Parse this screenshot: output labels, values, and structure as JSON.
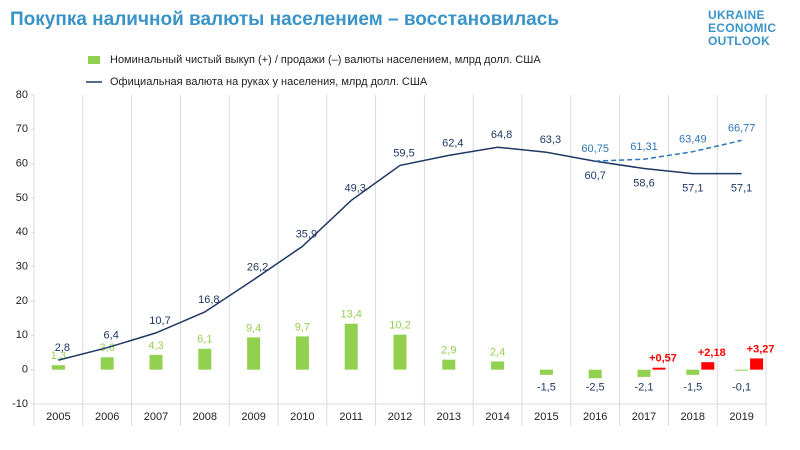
{
  "chart_data": {
    "type": "combo",
    "title": "Покупка наличной валюты населением – восстановилась",
    "logo": [
      "UKRAINE",
      "ECONOMIC",
      "OUTLOOK"
    ],
    "categories": [
      "2005",
      "2006",
      "2007",
      "2008",
      "2009",
      "2010",
      "2011",
      "2012",
      "2013",
      "2014",
      "2015",
      "2016",
      "2017",
      "2018",
      "2019"
    ],
    "ylim": [
      -10,
      80
    ],
    "yticks": [
      -10,
      0,
      10,
      20,
      30,
      40,
      50,
      60,
      70,
      80
    ],
    "legend": "top-left",
    "series": [
      {
        "name": "Номинальный чистый выкуп (+) / продажи (–) валюты населением, млрд долл. США",
        "type": "bar",
        "color": "#92d050",
        "values": [
          1.3,
          3.6,
          4.3,
          6.1,
          9.4,
          9.7,
          13.4,
          10.2,
          2.9,
          2.4,
          -1.5,
          -2.5,
          -2.1,
          -1.5,
          -0.1
        ],
        "value_labels": [
          "1,3",
          "3,6",
          "4,3",
          "6,1",
          "9,4",
          "9,7",
          "13,4",
          "10,2",
          "2,9",
          "2,4",
          "-1,5",
          "-2,5",
          "-2,1",
          "-1,5",
          "-0,1"
        ]
      },
      {
        "type": "bar",
        "color": "#ff0000",
        "values": [
          null,
          null,
          null,
          null,
          null,
          null,
          null,
          null,
          null,
          null,
          null,
          null,
          0.57,
          2.18,
          3.27
        ],
        "value_labels": [
          null,
          null,
          null,
          null,
          null,
          null,
          null,
          null,
          null,
          null,
          null,
          null,
          "+0,57",
          "+2,18",
          "+3,27"
        ]
      },
      {
        "name": "Официальная валюта на руках у населения, млрд долл. США",
        "type": "line",
        "color": "#1f3864",
        "values": [
          2.8,
          6.4,
          10.7,
          16.8,
          26.2,
          35.9,
          49.3,
          59.5,
          62.4,
          64.8,
          63.3,
          60.7,
          58.6,
          57.1,
          57.1
        ],
        "value_labels": [
          "2,8",
          "6,4",
          "10,7",
          "16,8",
          "26,2",
          "35,9",
          "49,3",
          "59,5",
          "62,4",
          "64,8",
          "63,3",
          "60,7",
          "58,6",
          "57,1",
          "57,1"
        ]
      },
      {
        "type": "line",
        "color": "#2e75b6",
        "dashed": true,
        "values": [
          null,
          null,
          null,
          null,
          null,
          null,
          null,
          null,
          null,
          null,
          null,
          60.75,
          61.31,
          63.49,
          66.77
        ],
        "value_labels": [
          null,
          null,
          null,
          null,
          null,
          null,
          null,
          null,
          null,
          null,
          null,
          "60,75",
          "61,31",
          "63,49",
          "66,77"
        ]
      }
    ]
  }
}
